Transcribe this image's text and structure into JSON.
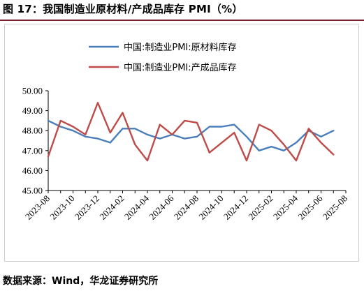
{
  "figure": {
    "title": "图 17：我国制造业原材料/产成品库存 PMI（%）",
    "source": "数据来源：Wind，华龙证券研究所"
  },
  "chart_data": {
    "type": "line",
    "title": "",
    "xlabel": "",
    "ylabel": "",
    "ylim": [
      45.0,
      50.0
    ],
    "y_ticks": [
      "45.00",
      "46.00",
      "47.00",
      "48.00",
      "49.00",
      "50.00"
    ],
    "x_tick_labels": [
      "2023-08",
      "2023-10",
      "2023-12",
      "2024-02",
      "2024-04",
      "2024-06",
      "2024-08",
      "2024-10",
      "2024-12",
      "2025-02",
      "2025-04",
      "2025-06",
      "2025-08"
    ],
    "categories": [
      "2023-08",
      "2023-09",
      "2023-10",
      "2023-11",
      "2023-12",
      "2024-01",
      "2024-02",
      "2024-03",
      "2024-04",
      "2024-05",
      "2024-06",
      "2024-07",
      "2024-08",
      "2024-09",
      "2024-10",
      "2024-11",
      "2024-12",
      "2025-01",
      "2025-02",
      "2025-03",
      "2025-04",
      "2025-05",
      "2025-06",
      "2025-07",
      "2025-08"
    ],
    "legend_position": "top-left",
    "grid": false,
    "series": [
      {
        "name": "中国:制造业PMI:原材料库存",
        "color": "#4a7ebb",
        "values": [
          48.5,
          48.2,
          48.0,
          47.7,
          47.6,
          47.4,
          48.1,
          48.1,
          47.8,
          47.6,
          47.8,
          47.6,
          47.7,
          48.2,
          48.2,
          48.3,
          47.7,
          47.0,
          47.2,
          47.0,
          47.4,
          48.0,
          47.7,
          48.0,
          null
        ]
      },
      {
        "name": "中国:制造业PMI:产成品库存",
        "color": "#be4b48",
        "values": [
          46.7,
          48.5,
          48.2,
          47.8,
          49.4,
          47.9,
          48.9,
          47.3,
          46.5,
          48.3,
          47.8,
          48.5,
          48.4,
          46.9,
          47.4,
          47.9,
          46.5,
          48.3,
          48.0,
          47.3,
          46.5,
          48.1,
          47.4,
          46.8,
          null
        ]
      }
    ]
  }
}
